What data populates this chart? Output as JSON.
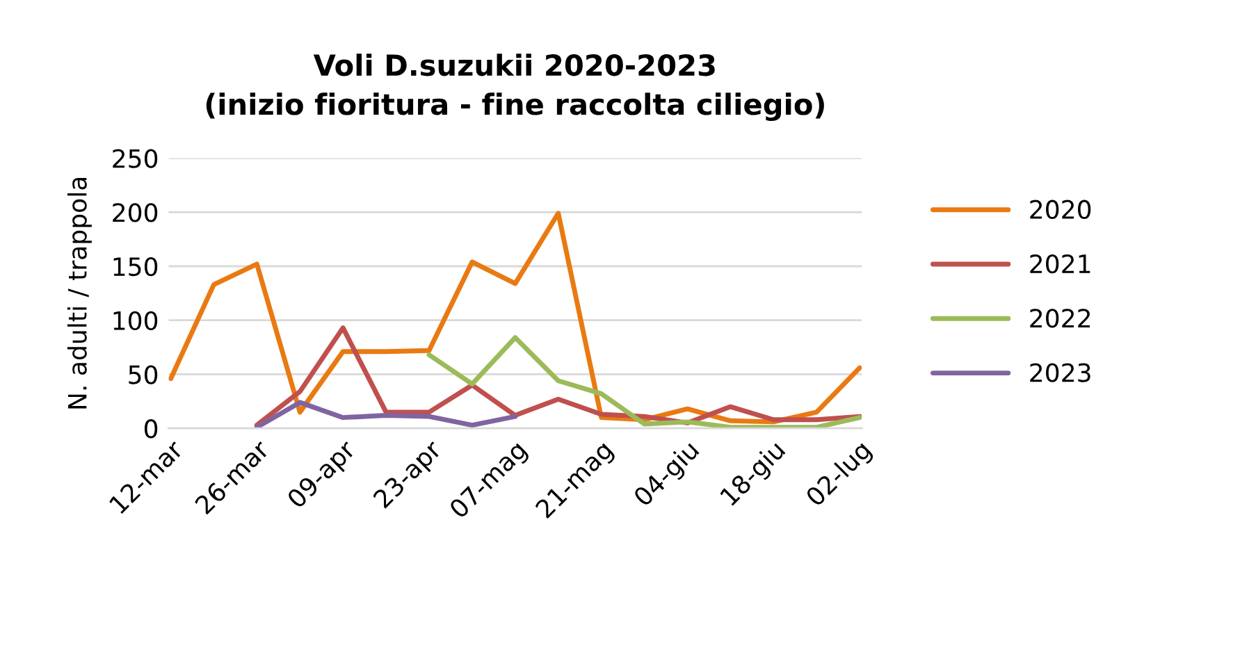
{
  "chart_data": {
    "type": "line",
    "title": "Voli D.suzukii 2020-2023\n(inizio fioritura - fine raccolta ciliegio)",
    "ylabel": "N. adulti / trappola",
    "categories": [
      "12-mar",
      null,
      "26-mar",
      null,
      "09-apr",
      null,
      "23-apr",
      null,
      "07-mag",
      null,
      "21-mag",
      null,
      "04-giu",
      null,
      "18-giu",
      null,
      "02-lug"
    ],
    "series": [
      {
        "name": "2020",
        "color": "#e97a12",
        "values": [
          46,
          133,
          152,
          15,
          71,
          71,
          72,
          154,
          134,
          199,
          10,
          8,
          18,
          7,
          6,
          15,
          56
        ]
      },
      {
        "name": "2021",
        "color": "#c0504d",
        "values": [
          null,
          null,
          3,
          34,
          93,
          15,
          15,
          40,
          12,
          27,
          13,
          11,
          5,
          20,
          8,
          8,
          11
        ]
      },
      {
        "name": "2022",
        "color": "#9bbb59",
        "values": [
          null,
          null,
          null,
          null,
          null,
          null,
          68,
          41,
          84,
          44,
          32,
          4,
          6,
          1,
          1,
          1,
          10
        ]
      },
      {
        "name": "2023",
        "color": "#8064a2",
        "values": [
          null,
          null,
          1,
          24,
          10,
          12,
          11,
          3,
          11,
          null,
          null,
          null,
          null,
          null,
          null,
          null,
          null
        ]
      }
    ],
    "ylim": [
      0,
      250
    ],
    "yticks": [
      0,
      50,
      100,
      150,
      200,
      250
    ],
    "grid": "y",
    "legend": "right",
    "marker": "none",
    "line_style": "solid"
  }
}
